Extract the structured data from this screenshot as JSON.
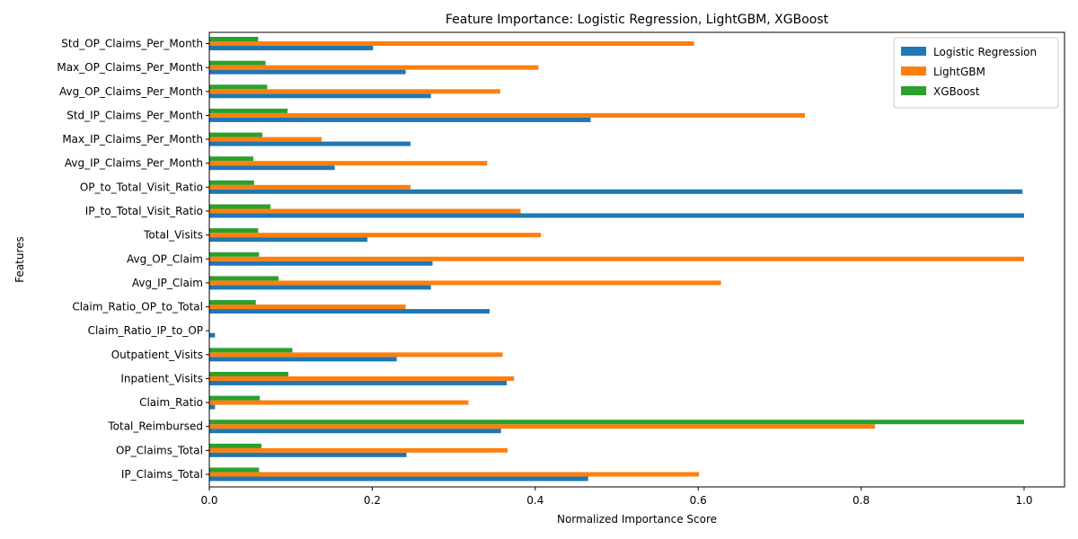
{
  "chart_data": {
    "type": "bar",
    "orientation": "horizontal",
    "title": "Feature Importance: Logistic Regression, LightGBM, XGBoost",
    "xlabel": "Normalized Importance Score",
    "ylabel": "Features",
    "xlim": [
      0,
      1.05
    ],
    "xticks": [
      "0.0",
      "0.2",
      "0.4",
      "0.6",
      "0.8",
      "1.0"
    ],
    "legend_position": "top-right",
    "grid": false,
    "categories": [
      "IP_Claims_Total",
      "OP_Claims_Total",
      "Total_Reimbursed",
      "Claim_Ratio",
      "Inpatient_Visits",
      "Outpatient_Visits",
      "Claim_Ratio_IP_to_OP",
      "Claim_Ratio_OP_to_Total",
      "Avg_IP_Claim",
      "Avg_OP_Claim",
      "Total_Visits",
      "IP_to_Total_Visit_Ratio",
      "OP_to_Total_Visit_Ratio",
      "Avg_IP_Claims_Per_Month",
      "Max_IP_Claims_Per_Month",
      "Std_IP_Claims_Per_Month",
      "Avg_OP_Claims_Per_Month",
      "Max_OP_Claims_Per_Month",
      "Std_OP_Claims_Per_Month"
    ],
    "series": [
      {
        "name": "Logistic Regression",
        "color": "#1f77b4",
        "values": [
          0.465,
          0.242,
          0.358,
          0.007,
          0.365,
          0.23,
          0.007,
          0.344,
          0.272,
          0.274,
          0.194,
          1.0,
          0.998,
          0.154,
          0.247,
          0.468,
          0.272,
          0.241,
          0.201
        ]
      },
      {
        "name": "LightGBM",
        "color": "#ff7f0e",
        "values": [
          0.601,
          0.366,
          0.817,
          0.318,
          0.374,
          0.36,
          0.0,
          0.241,
          0.628,
          1.0,
          0.407,
          0.382,
          0.247,
          0.341,
          0.138,
          0.731,
          0.357,
          0.404,
          0.595
        ]
      },
      {
        "name": "XGBoost",
        "color": "#2ca02c",
        "values": [
          0.061,
          0.064,
          1.0,
          0.062,
          0.097,
          0.102,
          0.0,
          0.057,
          0.085,
          0.061,
          0.06,
          0.075,
          0.055,
          0.054,
          0.065,
          0.096,
          0.071,
          0.069,
          0.06
        ]
      }
    ]
  }
}
